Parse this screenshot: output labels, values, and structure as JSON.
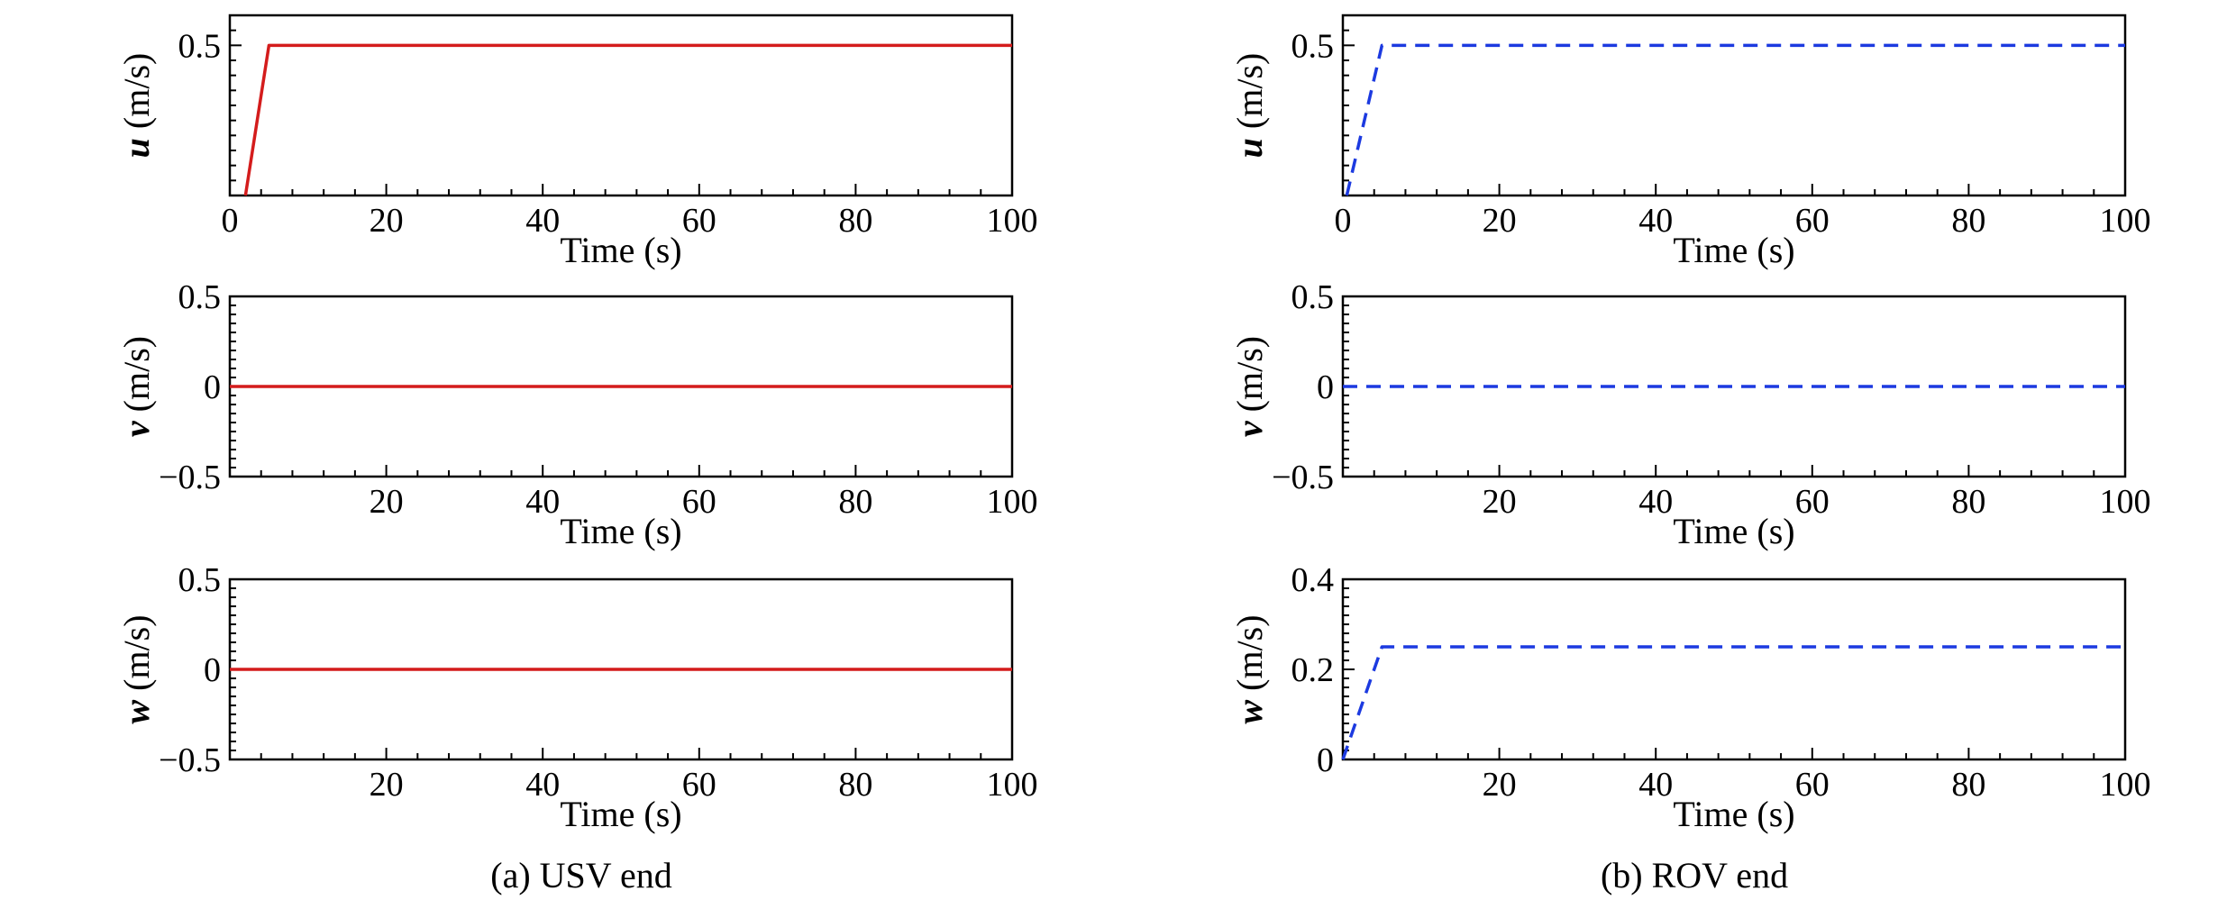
{
  "figure": {
    "captions": [
      "(a) USV end",
      "(b) ROV end"
    ]
  },
  "colors": {
    "usv": "#d41c1c",
    "rov": "#1c3ae0",
    "axis": "#000000"
  },
  "chart_data": [
    {
      "type": "line",
      "panel": "USV end",
      "row": 1,
      "xlabel": "Time (s)",
      "ylabel_var": "u",
      "ylabel_unit": " (m/s)",
      "xlim": [
        0,
        100
      ],
      "ylim": [
        0,
        0.6
      ],
      "xticks": [
        0,
        20,
        40,
        60,
        80,
        100
      ],
      "xtick_labels": [
        "0",
        "20",
        "40",
        "60",
        "80",
        "100"
      ],
      "yticks": [
        0.5
      ],
      "ytick_labels": [
        "0.5"
      ],
      "yminor_step": 0.05,
      "series": [
        {
          "style": "solid",
          "color": "usv",
          "x": [
            2,
            5,
            100
          ],
          "y": [
            0,
            0.5,
            0.5
          ]
        }
      ]
    },
    {
      "type": "line",
      "panel": "USV end",
      "row": 2,
      "xlabel": "Time (s)",
      "ylabel_var": "v",
      "ylabel_unit": " (m/s)",
      "xlim": [
        0,
        100
      ],
      "ylim": [
        -0.5,
        0.5
      ],
      "xticks": [
        20,
        40,
        60,
        80,
        100
      ],
      "xtick_labels": [
        "20",
        "40",
        "60",
        "80",
        "100"
      ],
      "yticks": [
        -0.5,
        0,
        0.5
      ],
      "ytick_labels": [
        "−0.5",
        "0",
        "0.5"
      ],
      "yminor_step": 0.05,
      "series": [
        {
          "style": "solid",
          "color": "usv",
          "x": [
            0,
            100
          ],
          "y": [
            0,
            0
          ]
        }
      ]
    },
    {
      "type": "line",
      "panel": "USV end",
      "row": 3,
      "xlabel": "Time (s)",
      "ylabel_var": "w",
      "ylabel_unit": " (m/s)",
      "xlim": [
        0,
        100
      ],
      "ylim": [
        -0.5,
        0.5
      ],
      "xticks": [
        20,
        40,
        60,
        80,
        100
      ],
      "xtick_labels": [
        "20",
        "40",
        "60",
        "80",
        "100"
      ],
      "yticks": [
        -0.5,
        0,
        0.5
      ],
      "ytick_labels": [
        "−0.5",
        "0",
        "0.5"
      ],
      "yminor_step": 0.05,
      "series": [
        {
          "style": "solid",
          "color": "usv",
          "x": [
            0,
            100
          ],
          "y": [
            0,
            0
          ]
        }
      ]
    },
    {
      "type": "line",
      "panel": "ROV end",
      "row": 1,
      "xlabel": "Time (s)",
      "ylabel_var": "u",
      "ylabel_unit": " (m/s)",
      "xlim": [
        0,
        100
      ],
      "ylim": [
        0,
        0.6
      ],
      "xticks": [
        0,
        20,
        40,
        60,
        80,
        100
      ],
      "xtick_labels": [
        "0",
        "20",
        "40",
        "60",
        "80",
        "100"
      ],
      "yticks": [
        0.5
      ],
      "ytick_labels": [
        "0.5"
      ],
      "yminor_step": 0.05,
      "series": [
        {
          "style": "dashed",
          "color": "rov",
          "x": [
            0.5,
            5,
            100
          ],
          "y": [
            0,
            0.5,
            0.5
          ]
        }
      ]
    },
    {
      "type": "line",
      "panel": "ROV end",
      "row": 2,
      "xlabel": "Time (s)",
      "ylabel_var": "v",
      "ylabel_unit": " (m/s)",
      "xlim": [
        0,
        100
      ],
      "ylim": [
        -0.5,
        0.5
      ],
      "xticks": [
        20,
        40,
        60,
        80,
        100
      ],
      "xtick_labels": [
        "20",
        "40",
        "60",
        "80",
        "100"
      ],
      "yticks": [
        -0.5,
        0,
        0.5
      ],
      "ytick_labels": [
        "−0.5",
        "0",
        "0.5"
      ],
      "yminor_step": 0.05,
      "series": [
        {
          "style": "dashed",
          "color": "rov",
          "x": [
            0,
            100
          ],
          "y": [
            0,
            0
          ]
        }
      ]
    },
    {
      "type": "line",
      "panel": "ROV end",
      "row": 3,
      "xlabel": "Time (s)",
      "ylabel_var": "w",
      "ylabel_unit": " (m/s)",
      "xlim": [
        0,
        100
      ],
      "ylim": [
        0,
        0.4
      ],
      "xticks": [
        20,
        40,
        60,
        80,
        100
      ],
      "xtick_labels": [
        "20",
        "40",
        "60",
        "80",
        "100"
      ],
      "yticks": [
        0,
        0.2,
        0.4
      ],
      "ytick_labels": [
        "0",
        "0.2",
        "0.4"
      ],
      "yminor_step": 0.02,
      "series": [
        {
          "style": "dashed",
          "color": "rov",
          "x": [
            0,
            5,
            100
          ],
          "y": [
            0,
            0.25,
            0.25
          ]
        }
      ]
    }
  ]
}
